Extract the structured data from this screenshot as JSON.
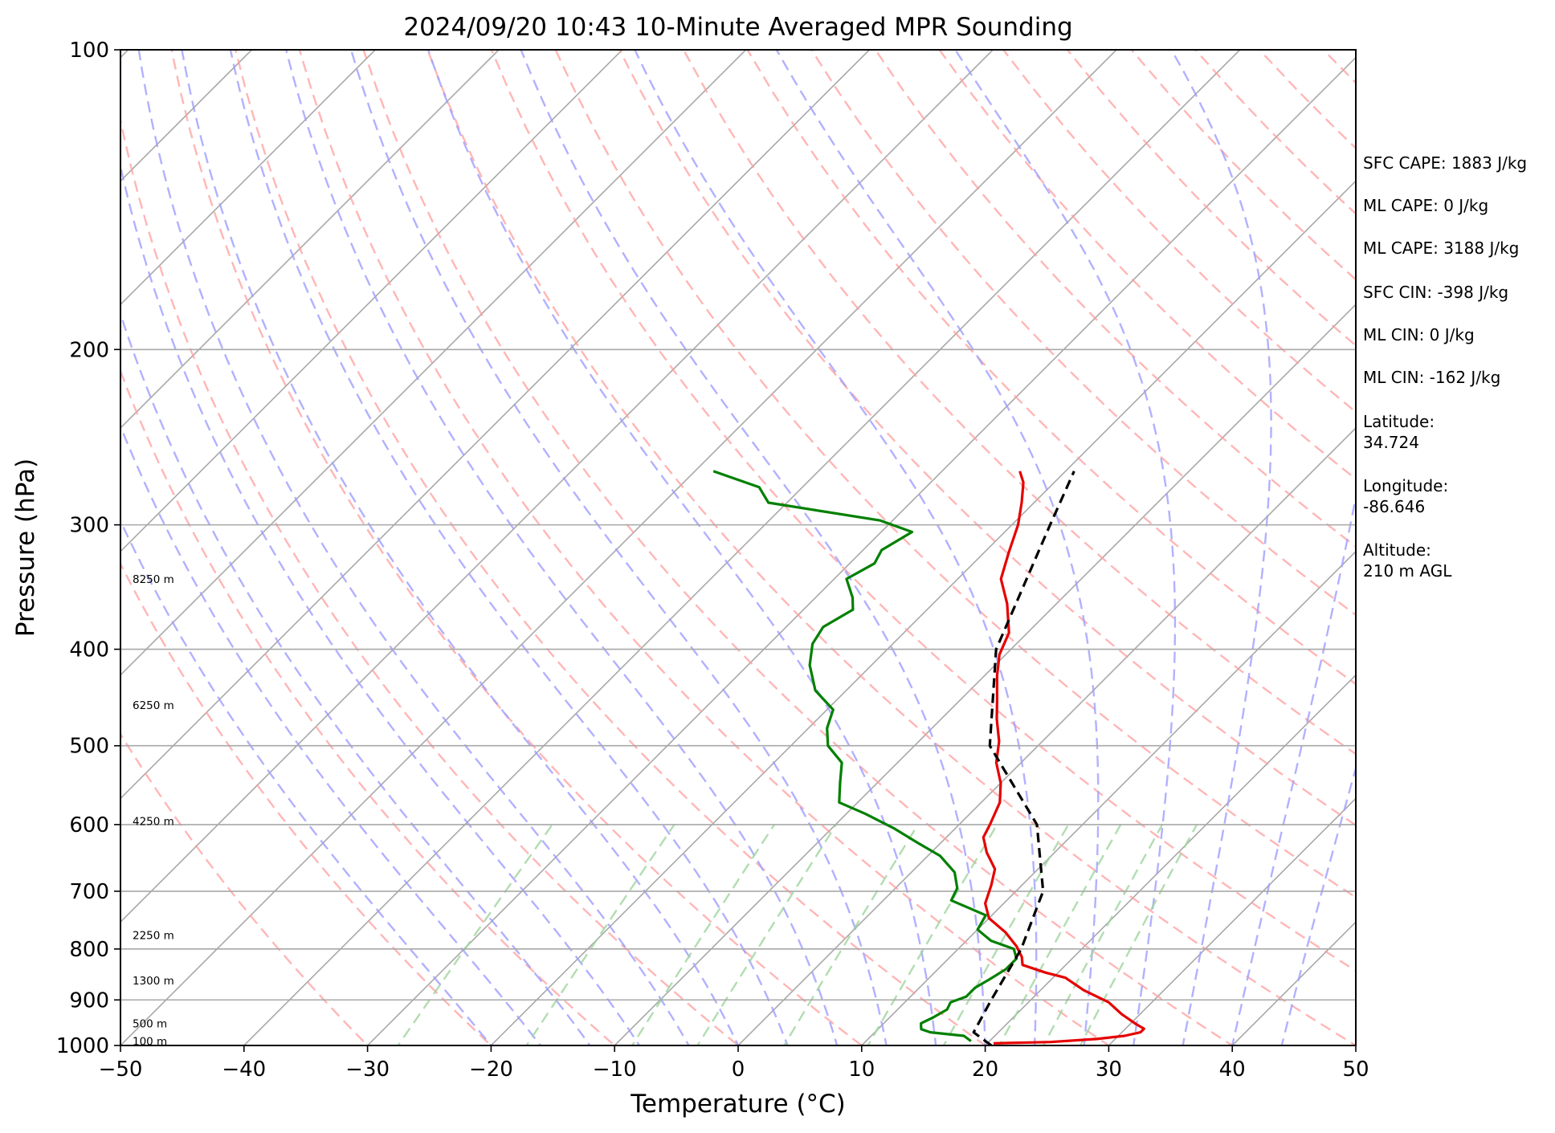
{
  "chart_data": {
    "type": "line",
    "chart_subtype": "skew-T log-P diagram",
    "title": "2024/09/20 10:43 10-Minute Averaged MPR Sounding",
    "xlabel": "Temperature (°C)",
    "ylabel": "Pressure (hPa)",
    "xlim": [
      -50,
      50
    ],
    "ylim": [
      1000,
      100
    ],
    "y_scale": "log",
    "x_ticks": [
      "−50",
      "−40",
      "−30",
      "−20",
      "−10",
      "0",
      "10",
      "20",
      "30",
      "40",
      "50"
    ],
    "y_ticks": [
      "100",
      "200",
      "300",
      "400",
      "500",
      "600",
      "700",
      "800",
      "900",
      "1000"
    ],
    "grid": "horizontal isobars at labeled pressures; skewed isotherms",
    "background_lines": {
      "isotherms": {
        "color": "#a8a8a8",
        "style": "solid"
      },
      "dry_adiabats": {
        "color": "#ff9d9d",
        "style": "dashed"
      },
      "moist_adiabats": {
        "color": "#9d9dff",
        "style": "dashed"
      },
      "mixing_ratio_lines": {
        "color": "#9dd49d",
        "style": "dashed"
      }
    },
    "series": [
      {
        "color": "#e60000",
        "style": "solid",
        "points": [
          {
            "p": 995,
            "t": 20.5
          },
          {
            "p": 992,
            "t": 25.0
          },
          {
            "p": 985,
            "t": 28.5
          },
          {
            "p": 978,
            "t": 30.5
          },
          {
            "p": 970,
            "t": 31.5
          },
          {
            "p": 962,
            "t": 31.5
          },
          {
            "p": 952,
            "t": 30.5
          },
          {
            "p": 930,
            "t": 28.5
          },
          {
            "p": 905,
            "t": 26.5
          },
          {
            "p": 880,
            "t": 23.5
          },
          {
            "p": 855,
            "t": 21.0
          },
          {
            "p": 845,
            "t": 19.0
          },
          {
            "p": 830,
            "t": 16.5
          },
          {
            "p": 815,
            "t": 15.8
          },
          {
            "p": 795,
            "t": 14.5
          },
          {
            "p": 770,
            "t": 12.5
          },
          {
            "p": 745,
            "t": 10.0
          },
          {
            "p": 720,
            "t": 8.5
          },
          {
            "p": 690,
            "t": 7.5
          },
          {
            "p": 665,
            "t": 6.5
          },
          {
            "p": 640,
            "t": 4.5
          },
          {
            "p": 618,
            "t": 3.0
          },
          {
            "p": 600,
            "t": 2.5
          },
          {
            "p": 570,
            "t": 1.5
          },
          {
            "p": 545,
            "t": 0.0
          },
          {
            "p": 520,
            "t": -2.0
          },
          {
            "p": 495,
            "t": -3.5
          },
          {
            "p": 470,
            "t": -5.5
          },
          {
            "p": 450,
            "t": -7.0
          },
          {
            "p": 425,
            "t": -9.0
          },
          {
            "p": 405,
            "t": -10.5
          },
          {
            "p": 385,
            "t": -11.5
          },
          {
            "p": 360,
            "t": -14.0
          },
          {
            "p": 340,
            "t": -16.5
          },
          {
            "p": 320,
            "t": -18.0
          },
          {
            "p": 300,
            "t": -19.5
          },
          {
            "p": 285,
            "t": -21.0
          },
          {
            "p": 272,
            "t": -22.5
          },
          {
            "p": 265,
            "t": -23.7
          }
        ]
      },
      {
        "color": "#008000",
        "style": "solid",
        "points": [
          {
            "p": 990,
            "t": 18.5
          },
          {
            "p": 978,
            "t": 17.5
          },
          {
            "p": 970,
            "t": 14.5
          },
          {
            "p": 963,
            "t": 13.5
          },
          {
            "p": 950,
            "t": 13.0
          },
          {
            "p": 938,
            "t": 13.5
          },
          {
            "p": 920,
            "t": 14.0
          },
          {
            "p": 905,
            "t": 13.7
          },
          {
            "p": 893,
            "t": 14.5
          },
          {
            "p": 875,
            "t": 14.5
          },
          {
            "p": 858,
            "t": 15.0
          },
          {
            "p": 838,
            "t": 15.5
          },
          {
            "p": 818,
            "t": 15.5
          },
          {
            "p": 800,
            "t": 14.5
          },
          {
            "p": 785,
            "t": 12.0
          },
          {
            "p": 765,
            "t": 10.0
          },
          {
            "p": 740,
            "t": 9.5
          },
          {
            "p": 715,
            "t": 5.5
          },
          {
            "p": 695,
            "t": 5.0
          },
          {
            "p": 670,
            "t": 3.5
          },
          {
            "p": 645,
            "t": 1.0
          },
          {
            "p": 625,
            "t": -2.0
          },
          {
            "p": 605,
            "t": -5.0
          },
          {
            "p": 585,
            "t": -8.5
          },
          {
            "p": 570,
            "t": -11.5
          },
          {
            "p": 545,
            "t": -13.0
          },
          {
            "p": 520,
            "t": -14.5
          },
          {
            "p": 500,
            "t": -17.0
          },
          {
            "p": 480,
            "t": -18.5
          },
          {
            "p": 460,
            "t": -19.5
          },
          {
            "p": 440,
            "t": -22.5
          },
          {
            "p": 415,
            "t": -25.0
          },
          {
            "p": 395,
            "t": -26.5
          },
          {
            "p": 380,
            "t": -27.0
          },
          {
            "p": 365,
            "t": -26.0
          },
          {
            "p": 355,
            "t": -27.0
          },
          {
            "p": 340,
            "t": -29.0
          },
          {
            "p": 328,
            "t": -28.0
          },
          {
            "p": 318,
            "t": -28.5
          },
          {
            "p": 305,
            "t": -27.5
          },
          {
            "p": 297,
            "t": -31.0
          },
          {
            "p": 285,
            "t": -41.5
          },
          {
            "p": 275,
            "t": -43.5
          },
          {
            "p": 265,
            "t": -48.5
          }
        ]
      },
      {
        "color": "#000000",
        "style": "dashed",
        "points": [
          {
            "p": 1000,
            "t": 20.5
          },
          {
            "p": 970,
            "t": 18.0
          },
          {
            "p": 900,
            "t": 16.8
          },
          {
            "p": 800,
            "t": 15.1
          },
          {
            "p": 700,
            "t": 12.2
          },
          {
            "p": 600,
            "t": 6.3
          },
          {
            "p": 500,
            "t": -3.9
          },
          {
            "p": 400,
            "t": -11.2
          },
          {
            "p": 300,
            "t": -16.9
          },
          {
            "p": 265,
            "t": -19.3
          }
        ]
      }
    ],
    "height_labels": [
      {
        "p": 990,
        "label": "100 m"
      },
      {
        "p": 950,
        "label": "500 m"
      },
      {
        "p": 860,
        "label": "1300 m"
      },
      {
        "p": 775,
        "label": "2250 m"
      },
      {
        "p": 595,
        "label": "4250 m"
      },
      {
        "p": 455,
        "label": "6250 m"
      },
      {
        "p": 340,
        "label": "8250 m"
      }
    ],
    "annotations": [
      "SFC CAPE: 1883 J/kg",
      "ML CAPE: 0 J/kg",
      "ML CAPE: 3188 J/kg",
      "SFC CIN: -398 J/kg",
      "ML CIN: 0 J/kg",
      "ML CIN: -162 J/kg"
    ],
    "location": {
      "latitude_label": "Latitude:",
      "latitude": "34.724",
      "longitude_label": "Longitude:",
      "longitude": "-86.646",
      "altitude_label": "Altitude:",
      "altitude": "210 m AGL"
    }
  }
}
